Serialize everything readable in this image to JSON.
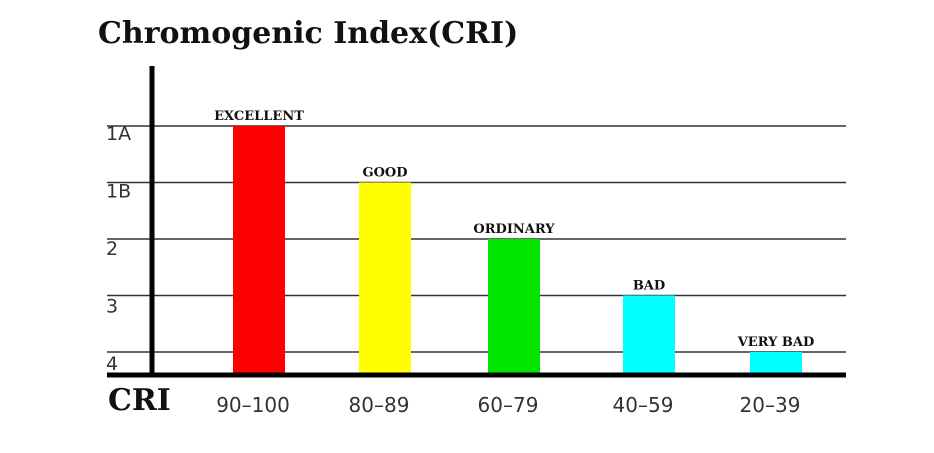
{
  "chart_data": {
    "type": "bar",
    "title": "Chromogenic Index(CRI)",
    "xlabel": "CRI",
    "ylabel": "",
    "categories": [
      "90-100",
      "80-89",
      "60-79",
      "40-59",
      "20-39"
    ],
    "y_levels": [
      "1A",
      "1B",
      "2",
      "3",
      "4"
    ],
    "values": [
      5,
      4,
      3,
      2,
      1
    ],
    "ylim": [
      0,
      5
    ],
    "bar_labels": [
      "EXCELLENT",
      "GOOD",
      "ORDINARY",
      "BAD",
      "VERY BAD"
    ],
    "colors": [
      "#ff0000",
      "#ffff00",
      "#00e600",
      "#00ffff",
      "#00ffff"
    ],
    "grid": true,
    "legend": "none"
  }
}
